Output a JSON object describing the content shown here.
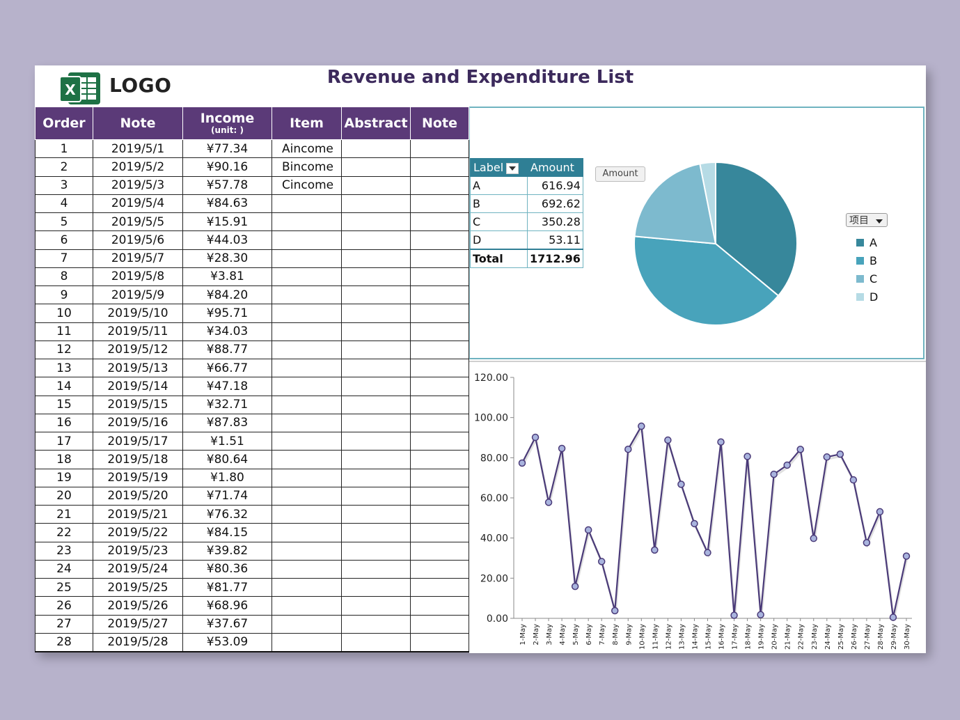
{
  "header": {
    "logo_text": "LOGO",
    "title": "Revenue and Expenditure List"
  },
  "table": {
    "headers": {
      "order": "Order",
      "note": "Note",
      "income": "Income",
      "income_unit": "(unit: )",
      "item": "Item",
      "abstract": "Abstract",
      "note2": "Note"
    },
    "rows": [
      {
        "order": "1",
        "date": "2019/5/1",
        "income": "¥77.34",
        "item": "Aincome"
      },
      {
        "order": "2",
        "date": "2019/5/2",
        "income": "¥90.16",
        "item": "Bincome"
      },
      {
        "order": "3",
        "date": "2019/5/3",
        "income": "¥57.78",
        "item": "Cincome"
      },
      {
        "order": "4",
        "date": "2019/5/4",
        "income": "¥84.63",
        "item": ""
      },
      {
        "order": "5",
        "date": "2019/5/5",
        "income": "¥15.91",
        "item": ""
      },
      {
        "order": "6",
        "date": "2019/5/6",
        "income": "¥44.03",
        "item": ""
      },
      {
        "order": "7",
        "date": "2019/5/7",
        "income": "¥28.30",
        "item": ""
      },
      {
        "order": "8",
        "date": "2019/5/8",
        "income": "¥3.81",
        "item": ""
      },
      {
        "order": "9",
        "date": "2019/5/9",
        "income": "¥84.20",
        "item": ""
      },
      {
        "order": "10",
        "date": "2019/5/10",
        "income": "¥95.71",
        "item": ""
      },
      {
        "order": "11",
        "date": "2019/5/11",
        "income": "¥34.03",
        "item": ""
      },
      {
        "order": "12",
        "date": "2019/5/12",
        "income": "¥88.77",
        "item": ""
      },
      {
        "order": "13",
        "date": "2019/5/13",
        "income": "¥66.77",
        "item": ""
      },
      {
        "order": "14",
        "date": "2019/5/14",
        "income": "¥47.18",
        "item": ""
      },
      {
        "order": "15",
        "date": "2019/5/15",
        "income": "¥32.71",
        "item": ""
      },
      {
        "order": "16",
        "date": "2019/5/16",
        "income": "¥87.83",
        "item": ""
      },
      {
        "order": "17",
        "date": "2019/5/17",
        "income": "¥1.51",
        "item": ""
      },
      {
        "order": "18",
        "date": "2019/5/18",
        "income": "¥80.64",
        "item": ""
      },
      {
        "order": "19",
        "date": "2019/5/19",
        "income": "¥1.80",
        "item": ""
      },
      {
        "order": "20",
        "date": "2019/5/20",
        "income": "¥71.74",
        "item": ""
      },
      {
        "order": "21",
        "date": "2019/5/21",
        "income": "¥76.32",
        "item": ""
      },
      {
        "order": "22",
        "date": "2019/5/22",
        "income": "¥84.15",
        "item": ""
      },
      {
        "order": "23",
        "date": "2019/5/23",
        "income": "¥39.82",
        "item": ""
      },
      {
        "order": "24",
        "date": "2019/5/24",
        "income": "¥80.36",
        "item": ""
      },
      {
        "order": "25",
        "date": "2019/5/25",
        "income": "¥81.77",
        "item": ""
      },
      {
        "order": "26",
        "date": "2019/5/26",
        "income": "¥68.96",
        "item": ""
      },
      {
        "order": "27",
        "date": "2019/5/27",
        "income": "¥37.67",
        "item": ""
      },
      {
        "order": "28",
        "date": "2019/5/28",
        "income": "¥53.09",
        "item": ""
      }
    ]
  },
  "pivot": {
    "label_header": "Label",
    "amount_header": "Amount",
    "rows": [
      {
        "label": "A",
        "amount": "616.94"
      },
      {
        "label": "B",
        "amount": "692.62"
      },
      {
        "label": "C",
        "amount": "350.28"
      },
      {
        "label": "D",
        "amount": "53.11"
      }
    ],
    "total_label": "Total",
    "total_amount": "1712.96"
  },
  "chart_data": [
    {
      "type": "pie",
      "title": "Amount",
      "legend_title": "项目",
      "categories": [
        "A",
        "B",
        "C",
        "D"
      ],
      "values": [
        616.94,
        692.62,
        350.28,
        53.11
      ],
      "colors": [
        "#37879b",
        "#48a3bb",
        "#7dbace",
        "#b6dbe5"
      ]
    },
    {
      "type": "line",
      "categories": [
        "1-May",
        "2-May",
        "3-May",
        "4-May",
        "5-May",
        "6-May",
        "7-May",
        "8-May",
        "9-May",
        "10-May",
        "11-May",
        "12-May",
        "13-May",
        "14-May",
        "15-May",
        "16-May",
        "17-May",
        "18-May",
        "19-May",
        "20-May",
        "21-May",
        "22-May",
        "23-May",
        "24-May",
        "25-May",
        "26-May",
        "27-May",
        "28-May",
        "29-May",
        "30-May"
      ],
      "values": [
        77.34,
        90.16,
        57.78,
        84.63,
        15.91,
        44.03,
        28.3,
        3.81,
        84.2,
        95.71,
        34.03,
        88.77,
        66.77,
        47.18,
        32.71,
        87.83,
        1.51,
        80.64,
        1.8,
        71.74,
        76.32,
        84.15,
        39.82,
        80.36,
        81.77,
        68.96,
        37.67,
        53.09,
        0.5,
        31.0
      ],
      "ylim": [
        0,
        120
      ],
      "yticks": [
        "0.00",
        "20.00",
        "40.00",
        "60.00",
        "80.00",
        "100.00",
        "120.00"
      ],
      "line_color": "#4a3a78",
      "marker_color": "#a9b4de"
    }
  ]
}
